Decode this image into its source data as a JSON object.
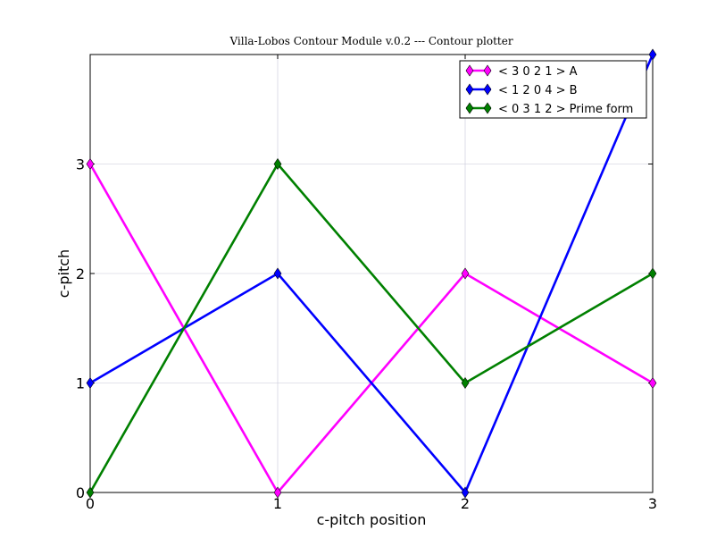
{
  "chart_data": {
    "type": "line",
    "title": "Villa-Lobos Contour Module v.0.2 --- Contour plotter",
    "xlabel": "c-pitch position",
    "ylabel": "c-pitch",
    "x": [
      0,
      1,
      2,
      3
    ],
    "xlim": [
      0,
      3
    ],
    "ylim": [
      0,
      4
    ],
    "xticks": [
      "0",
      "1",
      "2",
      "3"
    ],
    "yticks": [
      "0",
      "1",
      "2",
      "3"
    ],
    "grid": true,
    "legend_position": "top-right",
    "series": [
      {
        "name": "< 3 0 2 1 > A",
        "values": [
          3,
          0,
          2,
          1
        ],
        "color": "#ff00ff",
        "marker": "diamond"
      },
      {
        "name": "< 1 2 0 4 > B",
        "values": [
          1,
          2,
          0,
          4
        ],
        "color": "#0000ff",
        "marker": "diamond"
      },
      {
        "name": "< 0 3 1 2 > Prime form",
        "values": [
          0,
          3,
          1,
          2
        ],
        "color": "#008000",
        "marker": "diamond"
      }
    ]
  }
}
